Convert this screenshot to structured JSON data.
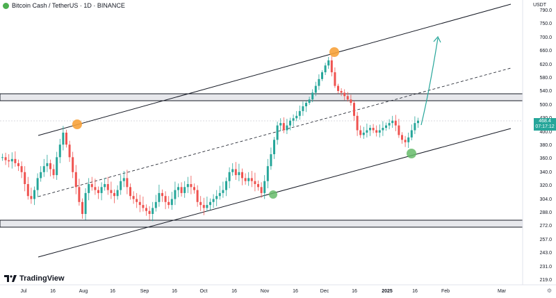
{
  "header": {
    "title": "Bitcoin Cash / TetherUS · 1D · BINANCE",
    "symbol_icon": "bitcoin-cash-coin-icon"
  },
  "currency": "USDT",
  "price_axis": [
    "790.0",
    "750.0",
    "700.0",
    "660.0",
    "620.0",
    "580.0",
    "540.0",
    "500.0",
    "430.0",
    "400.0",
    "380.0",
    "360.0",
    "340.0",
    "320.0",
    "304.0",
    "288.0",
    "272.0",
    "257.0",
    "243.0",
    "231.0",
    "219.0"
  ],
  "time_axis": [
    {
      "label": "Jul",
      "bold": false
    },
    {
      "label": "16",
      "bold": false
    },
    {
      "label": "Aug",
      "bold": false
    },
    {
      "label": "16",
      "bold": false
    },
    {
      "label": "Sep",
      "bold": false
    },
    {
      "label": "16",
      "bold": false
    },
    {
      "label": "Oct",
      "bold": false
    },
    {
      "label": "16",
      "bold": false
    },
    {
      "label": "Nov",
      "bold": false
    },
    {
      "label": "16",
      "bold": false
    },
    {
      "label": "Dec",
      "bold": false
    },
    {
      "label": "16",
      "bold": false
    },
    {
      "label": "2025",
      "bold": true
    },
    {
      "label": "16",
      "bold": false
    },
    {
      "label": "Feb",
      "bold": false
    },
    {
      "label": "Mar",
      "bold": false
    }
  ],
  "last_price": {
    "value": "468.4",
    "countdown": "07:17:12"
  },
  "branding": "TradingView",
  "settings_icon": "gear-icon",
  "colors": {
    "up": "#26a69a",
    "down": "#ef5350",
    "channel_line": "#131722",
    "zone_fill": "#e7e8ec",
    "orange_marker": "#f7a23b",
    "green_marker": "#66bb6a",
    "projection_arrow": "#26a69a"
  },
  "chart_data": {
    "type": "candlestick",
    "title": "Bitcoin Cash / TetherUS · 1D · BINANCE",
    "y_unit": "USDT",
    "ylim": [
      219,
      790
    ],
    "annotations": [
      {
        "type": "ascending-channel",
        "lines": [
          "upper",
          "middle-dashed",
          "lower"
        ]
      },
      {
        "type": "horizontal-zone",
        "level": "upper"
      },
      {
        "type": "horizontal-zone",
        "level": "lower"
      },
      {
        "type": "marker",
        "color": "orange",
        "at": "Aug swing high"
      },
      {
        "type": "marker",
        "color": "orange",
        "at": "Dec swing high"
      },
      {
        "type": "marker",
        "color": "green",
        "at": "Nov swing low"
      },
      {
        "type": "marker",
        "color": "green",
        "at": "Jan swing low"
      },
      {
        "type": "arrow",
        "direction": "up",
        "color": "teal"
      }
    ],
    "closes": [
      395,
      390,
      388,
      392,
      385,
      380,
      370,
      350,
      330,
      325,
      340,
      360,
      370,
      380,
      385,
      375,
      365,
      395,
      420,
      445,
      420,
      395,
      370,
      345,
      320,
      300,
      335,
      350,
      345,
      340,
      335,
      345,
      350,
      340,
      335,
      330,
      340,
      355,
      360,
      345,
      330,
      325,
      320,
      315,
      310,
      305,
      300,
      310,
      320,
      335,
      330,
      320,
      315,
      325,
      340,
      345,
      335,
      345,
      350,
      345,
      340,
      320,
      315,
      310,
      315,
      320,
      325,
      330,
      335,
      340,
      355,
      370,
      375,
      365,
      370,
      360,
      355,
      360,
      355,
      350,
      345,
      335,
      355,
      380,
      400,
      430,
      460,
      465,
      450,
      460,
      470,
      475,
      480,
      490,
      500,
      510,
      520,
      540,
      560,
      580,
      600,
      620,
      635,
      600,
      560,
      545,
      540,
      530,
      520,
      510,
      480,
      450,
      440,
      445,
      450,
      455,
      450,
      445,
      450,
      455,
      460,
      465,
      470,
      460,
      440,
      430,
      425,
      435,
      450,
      465,
      470
    ]
  }
}
